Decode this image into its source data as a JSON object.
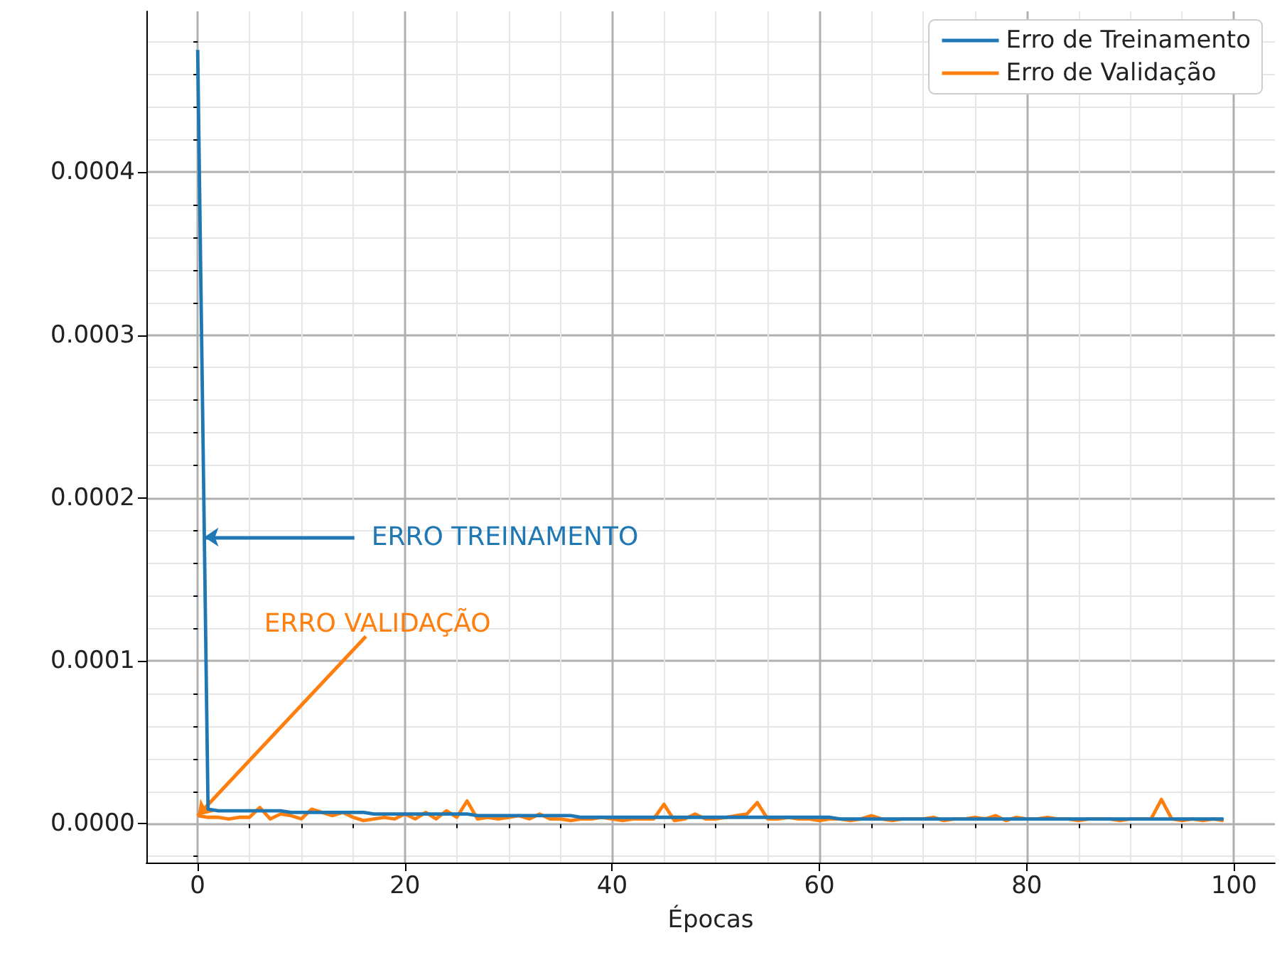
{
  "chart_data": {
    "type": "line",
    "xlabel": "Épocas",
    "x": [
      0,
      1,
      2,
      3,
      4,
      5,
      6,
      7,
      8,
      9,
      10,
      11,
      12,
      13,
      14,
      15,
      16,
      17,
      18,
      19,
      20,
      21,
      22,
      23,
      24,
      25,
      26,
      27,
      28,
      29,
      30,
      31,
      32,
      33,
      34,
      35,
      36,
      37,
      38,
      39,
      40,
      41,
      42,
      43,
      44,
      45,
      46,
      47,
      48,
      49,
      50,
      51,
      52,
      53,
      54,
      55,
      56,
      57,
      58,
      59,
      60,
      61,
      62,
      63,
      64,
      65,
      66,
      67,
      68,
      69,
      70,
      71,
      72,
      73,
      74,
      75,
      76,
      77,
      78,
      79,
      80,
      81,
      82,
      83,
      84,
      85,
      86,
      87,
      88,
      89,
      90,
      91,
      92,
      93,
      94,
      95,
      96,
      97,
      98,
      99
    ],
    "series": [
      {
        "name": "Erro de Treinamento",
        "color": "#1f77b4",
        "values": [
          0.000475,
          9e-06,
          8e-06,
          8e-06,
          8e-06,
          8e-06,
          8e-06,
          8e-06,
          8e-06,
          7e-06,
          7e-06,
          7e-06,
          7e-06,
          7e-06,
          7e-06,
          7e-06,
          7e-06,
          6e-06,
          6e-06,
          6e-06,
          6e-06,
          6e-06,
          6e-06,
          6e-06,
          6e-06,
          6e-06,
          6e-06,
          5e-06,
          5e-06,
          5e-06,
          5e-06,
          5e-06,
          5e-06,
          5e-06,
          5e-06,
          5e-06,
          5e-06,
          4e-06,
          4e-06,
          4e-06,
          4e-06,
          4e-06,
          4e-06,
          4e-06,
          4e-06,
          4e-06,
          4e-06,
          4e-06,
          4e-06,
          4e-06,
          4e-06,
          4e-06,
          4e-06,
          4e-06,
          4e-06,
          4e-06,
          4e-06,
          4e-06,
          4e-06,
          4e-06,
          4e-06,
          4e-06,
          3e-06,
          3e-06,
          3e-06,
          3e-06,
          3e-06,
          3e-06,
          3e-06,
          3e-06,
          3e-06,
          3e-06,
          3e-06,
          3e-06,
          3e-06,
          3e-06,
          3e-06,
          3e-06,
          3e-06,
          3e-06,
          3e-06,
          3e-06,
          3e-06,
          3e-06,
          3e-06,
          3e-06,
          3e-06,
          3e-06,
          3e-06,
          3e-06,
          3e-06,
          3e-06,
          3e-06,
          3e-06,
          3e-06,
          3e-06,
          3e-06,
          3e-06,
          3e-06,
          3e-06
        ]
      },
      {
        "name": "Erro de Validação",
        "color": "#ff7f0e",
        "values": [
          5e-06,
          4e-06,
          4e-06,
          3e-06,
          4e-06,
          4e-06,
          1e-05,
          3e-06,
          6e-06,
          5e-06,
          3e-06,
          9e-06,
          7e-06,
          5e-06,
          7e-06,
          4e-06,
          2e-06,
          3e-06,
          4e-06,
          3e-06,
          6e-06,
          3e-06,
          7e-06,
          3e-06,
          8e-06,
          4e-06,
          1.4e-05,
          3e-06,
          4e-06,
          3e-06,
          4e-06,
          5e-06,
          3e-06,
          6e-06,
          3e-06,
          3e-06,
          2e-06,
          3e-06,
          3e-06,
          4e-06,
          3e-06,
          2e-06,
          3e-06,
          3e-06,
          3e-06,
          1.2e-05,
          2e-06,
          3e-06,
          6e-06,
          3e-06,
          3e-06,
          4e-06,
          5e-06,
          6e-06,
          1.3e-05,
          3e-06,
          3e-06,
          4e-06,
          3e-06,
          3e-06,
          2e-06,
          3e-06,
          3e-06,
          2e-06,
          3e-06,
          5e-06,
          3e-06,
          2e-06,
          3e-06,
          3e-06,
          3e-06,
          4e-06,
          2e-06,
          3e-06,
          3e-06,
          4e-06,
          3e-06,
          5e-06,
          2e-06,
          4e-06,
          3e-06,
          3e-06,
          4e-06,
          3e-06,
          3e-06,
          2e-06,
          3e-06,
          3e-06,
          3e-06,
          2e-06,
          3e-06,
          3e-06,
          3e-06,
          1.5e-05,
          3e-06,
          2e-06,
          3e-06,
          2e-06,
          3e-06,
          2e-06
        ]
      }
    ],
    "annotations": [
      {
        "text": "ERRO TREINAMENTO",
        "x": 0.64,
        "y": 0.000176
      },
      {
        "text": "ERRO VALIDAÇÃO",
        "x": 0,
        "y": 5e-06
      }
    ],
    "xlim": [
      -4.95,
      103.95
    ],
    "ylim": [
      -2.38e-05,
      0.0004987
    ],
    "xticks": [
      0,
      20,
      40,
      60,
      80,
      100
    ],
    "yticks": [
      {
        "value": 0,
        "label": "0.0000"
      },
      {
        "value": 0.0001,
        "label": "0.0001"
      },
      {
        "value": 0.0002,
        "label": "0.0002"
      },
      {
        "value": 0.0003,
        "label": "0.0003"
      },
      {
        "value": 0.0004,
        "label": "0.0004"
      }
    ],
    "grid": true,
    "legend": "top right",
    "line_style": "solid",
    "marker": "none"
  }
}
